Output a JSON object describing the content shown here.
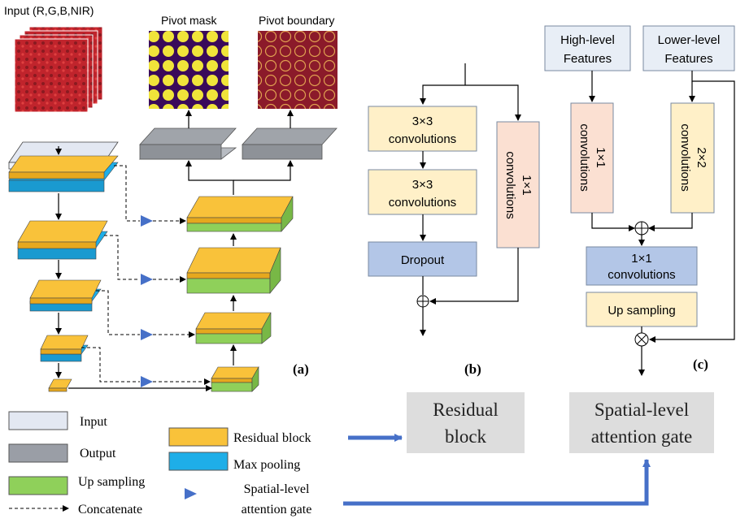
{
  "labels": {
    "input_caption": "Input (R,G,B,NIR)",
    "pivot_mask": "Pivot mask",
    "pivot_boundary": "Pivot boundary",
    "panel_a": "(a)",
    "panel_b": "(b)",
    "panel_c": "(c)"
  },
  "block_b": {
    "conv3_1a": "3×3",
    "conv3_1b": "convolutions",
    "conv3_2a": "3×3",
    "conv3_2b": "convolutions",
    "dropout": "Dropout",
    "conv1a": "1×1",
    "conv1b": "convolutions"
  },
  "block_c": {
    "high_a": "High-level",
    "high_b": "Features",
    "low_a": "Lower-level",
    "low_b": "Features",
    "conv1a": "1×1",
    "conv1b": "convolutions",
    "conv2a": "2×2",
    "conv2b": "convolutions",
    "mid_a": "1×1",
    "mid_b": "convolutions",
    "upsampling": "Up sampling"
  },
  "legend": {
    "input": "Input",
    "output": "Output",
    "upsampling": "Up sampling",
    "concatenate": "Concatenate",
    "residual": "Residual block",
    "maxpool": "Max pooling",
    "attn_a": "Spatial-level",
    "attn_b": "attention gate"
  },
  "callouts": {
    "residual_a": "Residual",
    "residual_b": "block",
    "spatial_a": "Spatial-level",
    "spatial_b": "attention gate"
  },
  "colors": {
    "residual": "#f9c23a",
    "maxpool": "#1eaee8",
    "upsampling": "#8fd05a",
    "output": "#9a9ea6",
    "input": "#e3e8f2",
    "attention": "#4670c8",
    "conv_yellow": "#fff0c8",
    "conv_pink": "#fbe0d2",
    "blue_box": "#b3c6e7",
    "gray_box": "#dddddd",
    "feature_box": "#e8eef6"
  }
}
